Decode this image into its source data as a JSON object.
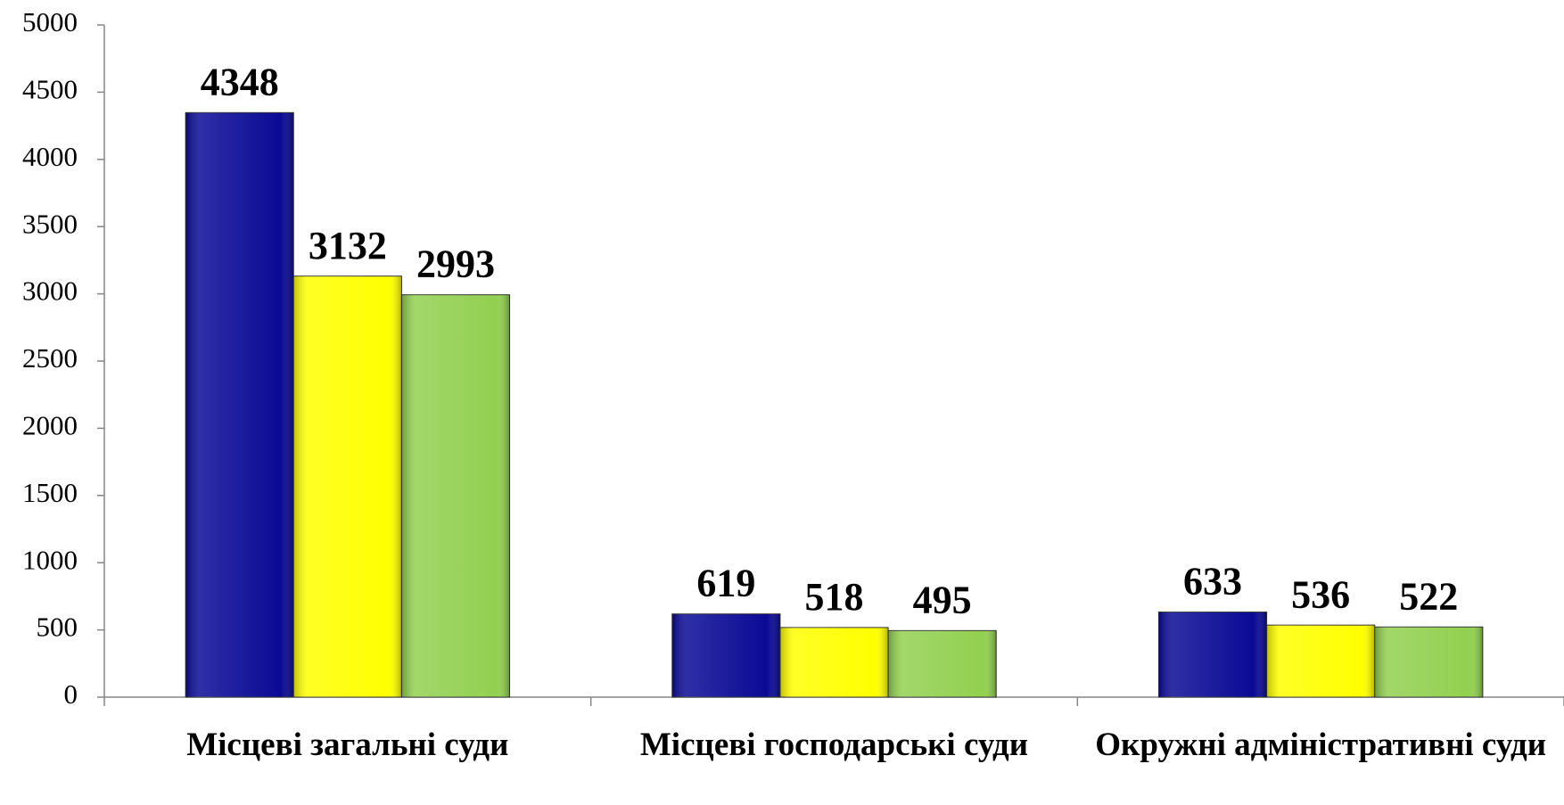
{
  "chart_data": {
    "type": "bar",
    "categories": [
      "Місцеві загальні суди",
      "Місцеві господарські суди",
      "Окружні адміністративні суди"
    ],
    "series": [
      {
        "color": "#0a0a96",
        "values": [
          4348,
          619,
          633
        ]
      },
      {
        "color": "#ffff00",
        "values": [
          3132,
          518,
          536
        ]
      },
      {
        "color": "#92d050",
        "values": [
          2993,
          495,
          522
        ]
      }
    ],
    "ylim": [
      0,
      5000
    ],
    "yticks": [
      0,
      500,
      1000,
      1500,
      2000,
      2500,
      3000,
      3500,
      4000,
      4500,
      5000
    ],
    "grid": false
  }
}
